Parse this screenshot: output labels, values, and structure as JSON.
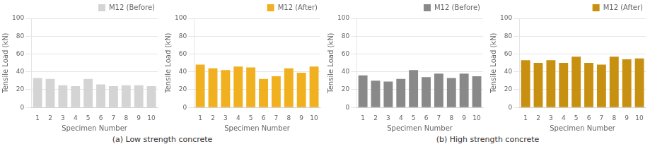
{
  "chart_data": [
    {
      "type": "bar",
      "categories": [
        "1",
        "2",
        "3",
        "4",
        "5",
        "6",
        "7",
        "8",
        "9",
        "10"
      ],
      "series": [
        {
          "name": "M12 (Before)",
          "color": "#d4d4d4",
          "values": [
            33,
            32,
            25,
            24,
            32,
            26,
            24,
            25,
            25,
            24
          ]
        }
      ],
      "xlabel": "Specimen Number",
      "ylabel": "Tensile Load (kN)",
      "ylim": [
        0,
        100
      ],
      "yticks": [
        0,
        20,
        40,
        60,
        80,
        100
      ],
      "grid": true,
      "legend": "upper right",
      "annotations": [
        "(a) Low strength concrete"
      ]
    },
    {
      "type": "bar",
      "categories": [
        "1",
        "2",
        "3",
        "4",
        "5",
        "6",
        "7",
        "8",
        "9",
        "10"
      ],
      "series": [
        {
          "name": "M12 (After)",
          "color": "#f0b020",
          "values": [
            48,
            44,
            42,
            46,
            45,
            32,
            35,
            44,
            39,
            46
          ]
        }
      ],
      "xlabel": "Specimen Number",
      "ylabel": "Tensile Load (kN)",
      "ylim": [
        0,
        100
      ],
      "yticks": [
        0,
        20,
        40,
        60,
        80,
        100
      ],
      "grid": true,
      "legend": "upper right"
    },
    {
      "type": "bar",
      "categories": [
        "1",
        "2",
        "3",
        "4",
        "5",
        "6",
        "7",
        "8",
        "9",
        "10"
      ],
      "series": [
        {
          "name": "M12 (Before)",
          "color": "#898989",
          "values": [
            36,
            30,
            29,
            32,
            42,
            34,
            38,
            33,
            38,
            35
          ]
        }
      ],
      "xlabel": "Specimen Number",
      "ylabel": "Tensile Load (kN)",
      "ylim": [
        0,
        100
      ],
      "yticks": [
        0,
        20,
        40,
        60,
        80,
        100
      ],
      "grid": true,
      "legend": "upper right",
      "annotations": [
        "(b) High strength concrete"
      ]
    },
    {
      "type": "bar",
      "categories": [
        "1",
        "2",
        "3",
        "4",
        "5",
        "6",
        "7",
        "8",
        "9",
        "10"
      ],
      "series": [
        {
          "name": "M12 (After)",
          "color": "#c89010",
          "values": [
            53,
            50,
            53,
            50,
            57,
            50,
            48,
            57,
            54,
            55
          ]
        }
      ],
      "xlabel": "Specimen Number",
      "ylabel": "Tensile Load (kN)",
      "ylim": [
        0,
        100
      ],
      "yticks": [
        0,
        20,
        40,
        60,
        80,
        100
      ],
      "grid": true,
      "legend": "upper right"
    }
  ]
}
